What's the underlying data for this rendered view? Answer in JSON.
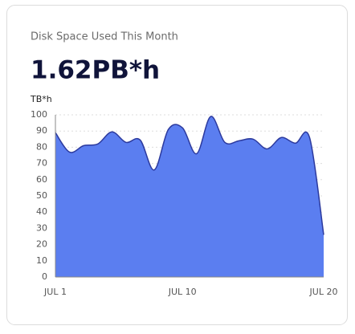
{
  "chart_data": {
    "type": "area",
    "title": "Disk Space Used This Month",
    "headline": "1.62PB*h",
    "y_label": "TB*h",
    "categories": [
      "JUL 1",
      null,
      null,
      null,
      null,
      null,
      null,
      null,
      null,
      "JUL 10",
      null,
      null,
      null,
      null,
      null,
      null,
      null,
      null,
      null,
      "JUL 20"
    ],
    "values": [
      89,
      77,
      81,
      82,
      89.5,
      83,
      84.5,
      66,
      91,
      92,
      76,
      99,
      83,
      84,
      85,
      79,
      86,
      82.5,
      86,
      26
    ],
    "color": "#5b7ef0",
    "line_color": "#2c3a9e",
    "ylim": [
      0,
      100
    ],
    "yticks": [
      0,
      10,
      20,
      30,
      40,
      50,
      60,
      70,
      80,
      90,
      100
    ],
    "grid": true
  }
}
